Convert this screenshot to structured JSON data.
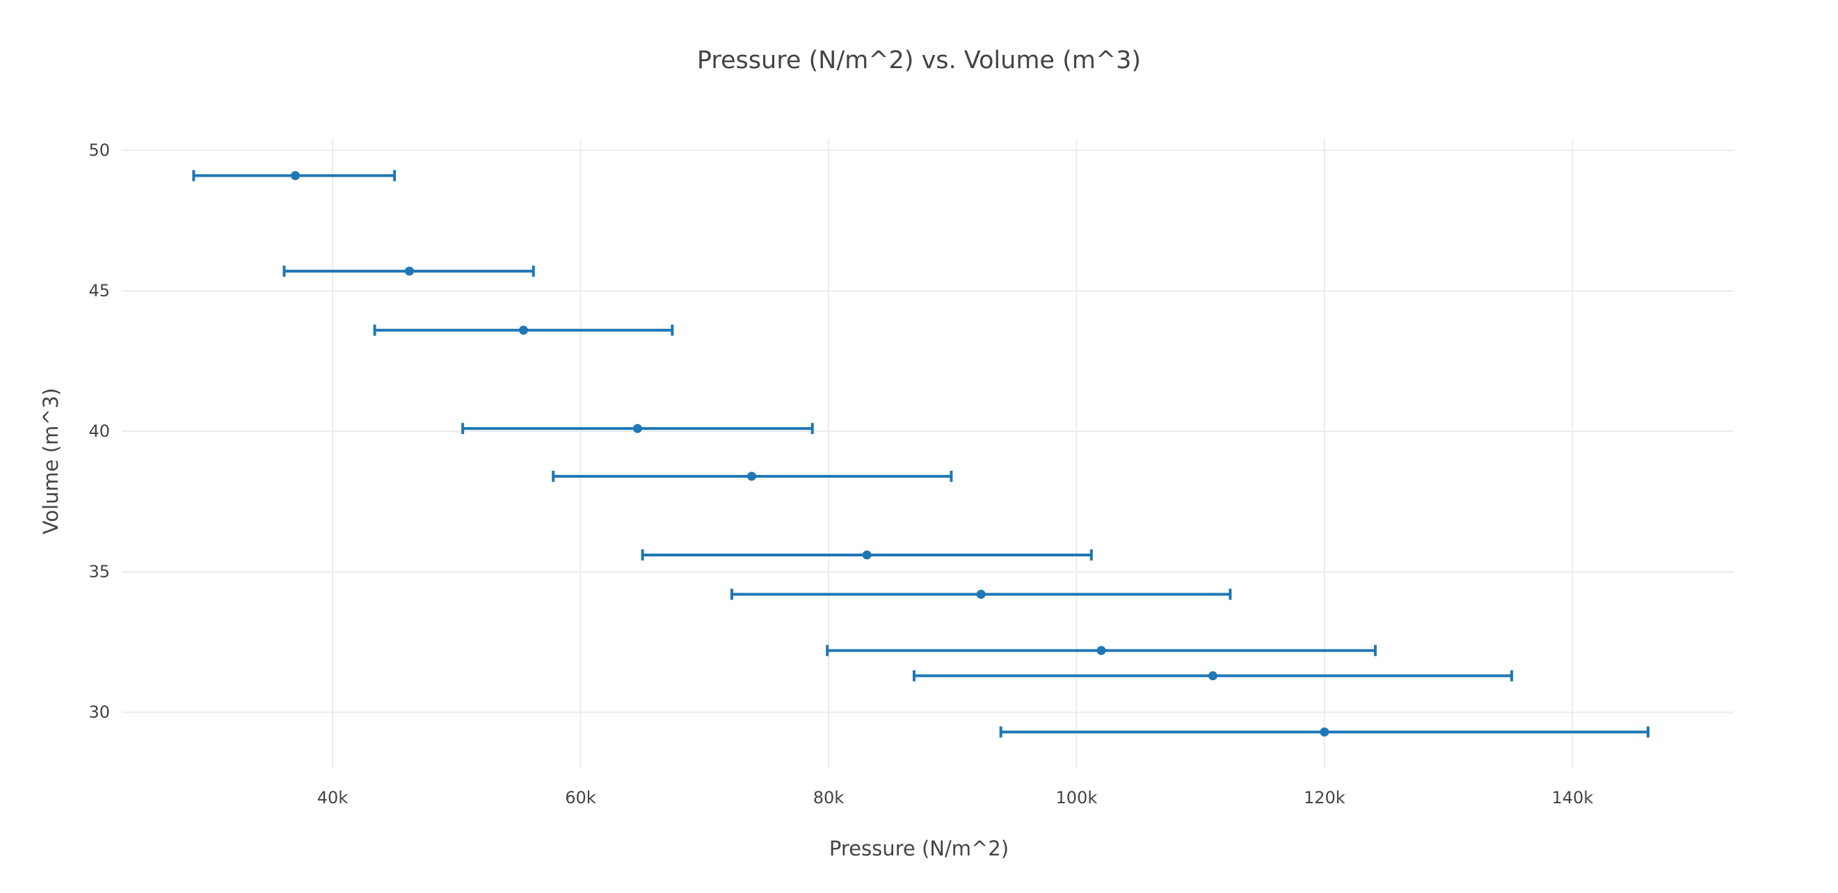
{
  "chart_data": {
    "type": "scatter",
    "title": "Pressure (N/m^2) vs. Volume (m^3)",
    "xlabel": "Pressure (N/m^2)",
    "ylabel": "Volume (m^3)",
    "xlim": [
      23000,
      153000
    ],
    "ylim": [
      28,
      50.4
    ],
    "x_ticks": [
      40000,
      60000,
      80000,
      100000,
      120000,
      140000
    ],
    "x_tick_labels": [
      "40k",
      "60k",
      "80k",
      "100k",
      "120k",
      "140k"
    ],
    "y_ticks": [
      30,
      35,
      40,
      45,
      50
    ],
    "y_tick_labels": [
      "30",
      "35",
      "40",
      "45",
      "50"
    ],
    "grid": true,
    "legend": "none",
    "color": "#1f77b4",
    "series": [
      {
        "points": [
          {
            "x": 37000,
            "y": 49.1,
            "x_low": 28800,
            "x_high": 45000
          },
          {
            "x": 46200,
            "y": 45.7,
            "x_low": 36100,
            "x_high": 56200
          },
          {
            "x": 55400,
            "y": 43.6,
            "x_low": 43400,
            "x_high": 67400
          },
          {
            "x": 64600,
            "y": 40.1,
            "x_low": 50500,
            "x_high": 78700
          },
          {
            "x": 73800,
            "y": 38.4,
            "x_low": 57800,
            "x_high": 89900
          },
          {
            "x": 83100,
            "y": 35.6,
            "x_low": 65000,
            "x_high": 101200
          },
          {
            "x": 92300,
            "y": 34.2,
            "x_low": 72200,
            "x_high": 112400
          },
          {
            "x": 102000,
            "y": 32.2,
            "x_low": 79900,
            "x_high": 124100
          },
          {
            "x": 111000,
            "y": 31.3,
            "x_low": 86900,
            "x_high": 135100
          },
          {
            "x": 120000,
            "y": 29.3,
            "x_low": 93900,
            "x_high": 146100
          }
        ]
      }
    ]
  }
}
